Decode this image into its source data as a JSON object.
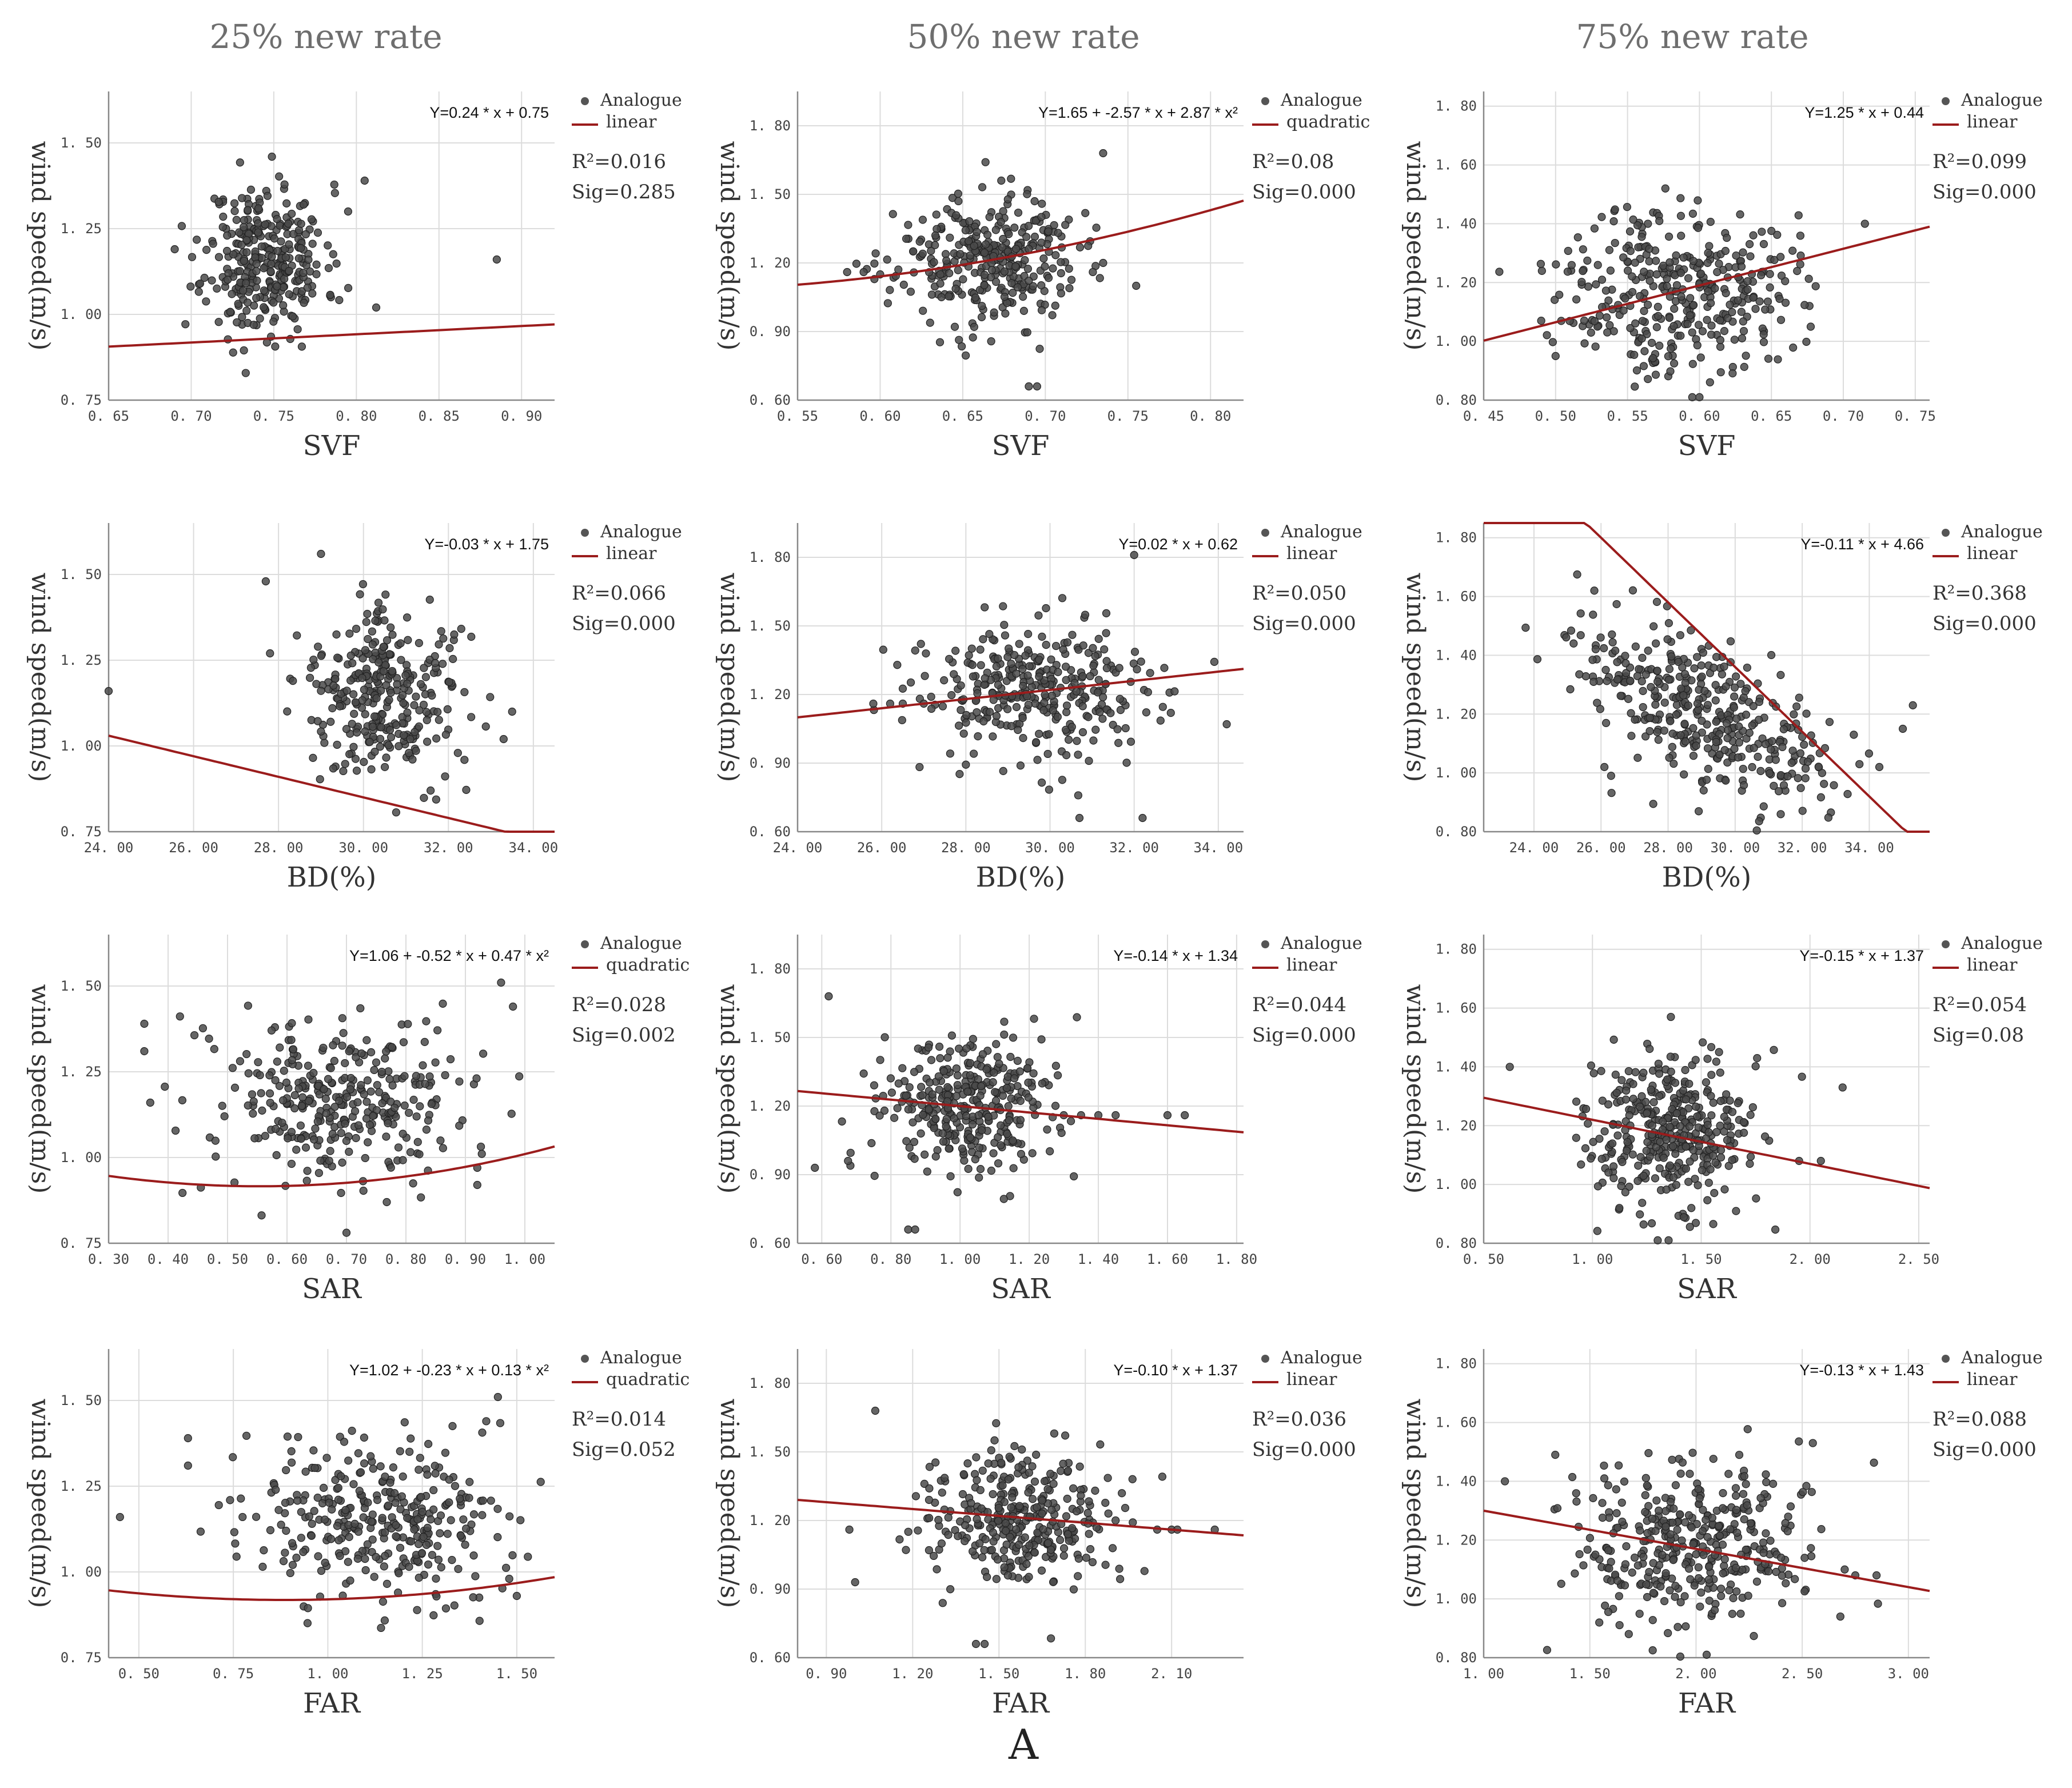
{
  "column_titles": [
    "25% new rate",
    "50% new rate",
    "75% new rate"
  ],
  "figure_label": "A",
  "legend_point_label": "Analogue",
  "colors": {
    "points": "#4a4a4a",
    "fit": "#9b1c1c",
    "grid": "#dcdcdc",
    "axis": "#888888"
  },
  "chart_data": [
    {
      "type": "scatter",
      "row": 0,
      "col": 0,
      "xlabel": "SVF",
      "ylabel": "wind speed(m/s)",
      "xlim": [
        0.65,
        0.92
      ],
      "ylim": [
        0.75,
        1.65
      ],
      "xticks": [
        0.65,
        0.7,
        0.75,
        0.8,
        0.85,
        0.9
      ],
      "yticks": [
        0.75,
        1.0,
        1.25,
        1.5
      ],
      "ytick_decimals": 2,
      "xtick_decimals": 2,
      "fit": {
        "kind": "linear",
        "coef": [
          0.75,
          0.24
        ],
        "label": "linear"
      },
      "equation": "Y=0.24 * x + 0.75",
      "r2": "R²=0.016",
      "sig": "Sig=0.285",
      "cloud": {
        "cx": 0.745,
        "cy": 1.16,
        "sx": 0.018,
        "sy": 0.11,
        "n": 320,
        "seed": 11
      },
      "outliers": [
        [
          0.885,
          1.16
        ],
        [
          0.805,
          1.39
        ],
        [
          0.812,
          1.02
        ],
        [
          0.795,
          1.3
        ],
        [
          0.69,
          1.19
        ]
      ]
    },
    {
      "type": "scatter",
      "row": 0,
      "col": 1,
      "xlabel": "SVF",
      "ylabel": "wind speed(m/s)",
      "xlim": [
        0.55,
        0.82
      ],
      "ylim": [
        0.6,
        1.95
      ],
      "xticks": [
        0.55,
        0.6,
        0.65,
        0.7,
        0.75,
        0.8
      ],
      "yticks": [
        0.6,
        0.9,
        1.2,
        1.5,
        1.8
      ],
      "ytick_decimals": 2,
      "xtick_decimals": 2,
      "fit": {
        "kind": "quadratic",
        "coef": [
          1.65,
          -2.57,
          2.87
        ],
        "label": "quadratic"
      },
      "equation": "Y=1.65 + -2.57 * x + 2.87 * x²",
      "r2": "R²=0.08",
      "sig": "Sig=0.000",
      "cloud": {
        "cx": 0.665,
        "cy": 1.21,
        "sx": 0.027,
        "sy": 0.14,
        "n": 330,
        "seed": 23
      },
      "outliers": [
        [
          0.69,
          0.66
        ],
        [
          0.695,
          0.66
        ],
        [
          0.755,
          1.1
        ],
        [
          0.735,
          1.68
        ],
        [
          0.735,
          1.2
        ],
        [
          0.58,
          1.16
        ],
        [
          0.59,
          1.16
        ],
        [
          0.6,
          1.15
        ]
      ]
    },
    {
      "type": "scatter",
      "row": 0,
      "col": 2,
      "xlabel": "SVF",
      "ylabel": "wind speed(m/s)",
      "xlim": [
        0.45,
        0.76
      ],
      "ylim": [
        0.8,
        1.85
      ],
      "xticks": [
        0.45,
        0.5,
        0.55,
        0.6,
        0.65,
        0.7,
        0.75
      ],
      "yticks": [
        0.8,
        1.0,
        1.2,
        1.4,
        1.6,
        1.8
      ],
      "ytick_decimals": 2,
      "xtick_decimals": 2,
      "fit": {
        "kind": "linear",
        "coef": [
          0.44,
          1.25
        ],
        "label": "linear"
      },
      "equation": "Y=1.25 * x + 0.44",
      "r2": "R²=0.099",
      "sig": "Sig=0.000",
      "cloud": {
        "cx": 0.585,
        "cy": 1.18,
        "sx": 0.04,
        "sy": 0.14,
        "n": 360,
        "seed": 37
      },
      "outliers": [
        [
          0.5,
          0.95
        ],
        [
          0.715,
          1.4
        ],
        [
          0.595,
          0.81
        ],
        [
          0.6,
          0.81
        ],
        [
          0.49,
          1.07
        ]
      ]
    },
    {
      "type": "scatter",
      "row": 1,
      "col": 0,
      "xlabel": "BD(%)",
      "ylabel": "wind speed(m/s)",
      "xlim": [
        24,
        34.5
      ],
      "ylim": [
        0.75,
        1.65
      ],
      "xticks": [
        24,
        26,
        28,
        30,
        32,
        34
      ],
      "yticks": [
        0.75,
        1.0,
        1.25,
        1.5
      ],
      "ytick_decimals": 2,
      "xtick_decimals": 2,
      "fit": {
        "kind": "linear",
        "coef": [
          1.75,
          -0.03
        ],
        "label": "linear"
      },
      "equation": "Y=-0.03 * x + 1.75",
      "r2": "R²=0.066",
      "sig": "Sig=0.000",
      "cloud": {
        "cx": 30.5,
        "cy": 1.15,
        "sx": 0.95,
        "sy": 0.12,
        "n": 310,
        "seed": 41
      },
      "outliers": [
        [
          24.0,
          1.16
        ],
        [
          27.7,
          1.48
        ],
        [
          27.8,
          1.27
        ],
        [
          33.3,
          1.02
        ],
        [
          33.5,
          1.1
        ],
        [
          29.0,
          1.56
        ]
      ]
    },
    {
      "type": "scatter",
      "row": 1,
      "col": 1,
      "xlabel": "BD(%)",
      "ylabel": "wind speed(m/s)",
      "xlim": [
        24,
        34.6
      ],
      "ylim": [
        0.6,
        1.95
      ],
      "xticks": [
        24,
        26,
        28,
        30,
        32,
        34
      ],
      "yticks": [
        0.6,
        0.9,
        1.2,
        1.5,
        1.8
      ],
      "ytick_decimals": 2,
      "xtick_decimals": 2,
      "fit": {
        "kind": "linear",
        "coef": [
          0.62,
          0.02
        ],
        "label": "linear"
      },
      "equation": "Y=0.02 * x + 0.62",
      "r2": "R²=0.050",
      "sig": "Sig=0.000",
      "cloud": {
        "cx": 29.8,
        "cy": 1.21,
        "sx": 1.5,
        "sy": 0.15,
        "n": 330,
        "seed": 53
      },
      "outliers": [
        [
          25.8,
          1.16
        ],
        [
          26.2,
          1.16
        ],
        [
          26.5,
          1.16
        ],
        [
          27.0,
          1.16
        ],
        [
          30.7,
          0.66
        ],
        [
          32.2,
          0.66
        ],
        [
          34.2,
          1.07
        ],
        [
          32.0,
          1.81
        ]
      ]
    },
    {
      "type": "scatter",
      "row": 1,
      "col": 2,
      "xlabel": "BD(%)",
      "ylabel": "wind speed(m/s)",
      "xlim": [
        22.5,
        35.8
      ],
      "ylim": [
        0.8,
        1.85
      ],
      "xticks": [
        24,
        26,
        28,
        30,
        32,
        34
      ],
      "yticks": [
        0.8,
        1.0,
        1.2,
        1.4,
        1.6,
        1.8
      ],
      "ytick_decimals": 2,
      "xtick_decimals": 2,
      "fit": {
        "kind": "linear",
        "coef": [
          4.66,
          -0.11
        ],
        "label": "linear"
      },
      "equation": "Y=-0.11 * x + 4.66",
      "r2": "R²=0.368",
      "sig": "Sig=0.000",
      "cloud": {
        "cx": 29.0,
        "cy": 1.19,
        "sx": 1.8,
        "sy": 0.12,
        "n": 380,
        "seed": 67,
        "slope": -0.055
      },
      "outliers": [
        [
          25.8,
          1.62
        ],
        [
          26.1,
          1.02
        ],
        [
          26.3,
          0.99
        ],
        [
          35.3,
          1.23
        ],
        [
          34.3,
          1.02
        ],
        [
          35.0,
          1.15
        ]
      ]
    },
    {
      "type": "scatter",
      "row": 2,
      "col": 0,
      "xlabel": "SAR",
      "ylabel": "wind speed(m/s)",
      "xlim": [
        0.3,
        1.05
      ],
      "ylim": [
        0.75,
        1.65
      ],
      "xticks": [
        0.3,
        0.4,
        0.5,
        0.6,
        0.7,
        0.8,
        0.9,
        1.0
      ],
      "yticks": [
        0.75,
        1.0,
        1.25,
        1.5
      ],
      "ytick_decimals": 2,
      "xtick_decimals": 2,
      "fit": {
        "kind": "quadratic",
        "coef": [
          1.06,
          -0.52,
          0.47
        ],
        "label": "quadratic"
      },
      "equation": "Y=1.06 + -0.52 * x + 0.47 * x²",
      "r2": "R²=0.028",
      "sig": "Sig=0.002",
      "cloud": {
        "cx": 0.69,
        "cy": 1.16,
        "sx": 0.11,
        "sy": 0.12,
        "n": 330,
        "seed": 71
      },
      "outliers": [
        [
          0.36,
          1.39
        ],
        [
          0.36,
          1.31
        ],
        [
          0.37,
          1.16
        ],
        [
          0.98,
          1.44
        ],
        [
          0.96,
          1.51
        ],
        [
          0.92,
          0.92
        ],
        [
          0.92,
          0.97
        ]
      ]
    },
    {
      "type": "scatter",
      "row": 2,
      "col": 1,
      "xlabel": "SAR",
      "ylabel": "wind speed(m/s)",
      "xlim": [
        0.53,
        1.82
      ],
      "ylim": [
        0.6,
        1.95
      ],
      "xticks": [
        0.6,
        0.8,
        1.0,
        1.2,
        1.4,
        1.6,
        1.8
      ],
      "yticks": [
        0.6,
        0.9,
        1.2,
        1.5,
        1.8
      ],
      "ytick_decimals": 2,
      "xtick_decimals": 2,
      "fit": {
        "kind": "linear",
        "coef": [
          1.34,
          -0.14
        ],
        "label": "linear"
      },
      "equation": "Y=-0.14 * x + 1.34",
      "r2": "R²=0.044",
      "sig": "Sig=0.000",
      "cloud": {
        "cx": 1.02,
        "cy": 1.21,
        "sx": 0.13,
        "sy": 0.15,
        "n": 330,
        "seed": 83
      },
      "outliers": [
        [
          0.58,
          0.93
        ],
        [
          0.62,
          1.68
        ],
        [
          0.85,
          0.66
        ],
        [
          0.87,
          0.66
        ],
        [
          1.35,
          1.16
        ],
        [
          1.4,
          1.16
        ],
        [
          1.45,
          1.16
        ],
        [
          1.6,
          1.16
        ],
        [
          1.65,
          1.16
        ],
        [
          1.3,
          1.16
        ]
      ]
    },
    {
      "type": "scatter",
      "row": 2,
      "col": 2,
      "xlabel": "SAR",
      "ylabel": "wind speed(m/s)",
      "xlim": [
        0.5,
        2.55
      ],
      "ylim": [
        0.8,
        1.85
      ],
      "xticks": [
        0.5,
        1.0,
        1.5,
        2.0,
        2.5
      ],
      "yticks": [
        0.8,
        1.0,
        1.2,
        1.4,
        1.6,
        1.8
      ],
      "ytick_decimals": 2,
      "xtick_decimals": 2,
      "fit": {
        "kind": "linear",
        "coef": [
          1.37,
          -0.15
        ],
        "label": "linear"
      },
      "equation": "Y=-0.15 * x + 1.37",
      "r2": "R²=0.054",
      "sig": "Sig=0.08",
      "cloud": {
        "cx": 1.35,
        "cy": 1.18,
        "sx": 0.2,
        "sy": 0.14,
        "n": 370,
        "seed": 97
      },
      "outliers": [
        [
          0.62,
          1.4
        ],
        [
          2.15,
          1.33
        ],
        [
          1.95,
          1.08
        ],
        [
          2.05,
          1.08
        ],
        [
          1.3,
          0.81
        ],
        [
          1.35,
          0.81
        ]
      ]
    },
    {
      "type": "scatter",
      "row": 3,
      "col": 0,
      "xlabel": "FAR",
      "ylabel": "wind speed(m/s)",
      "xlim": [
        0.42,
        1.6
      ],
      "ylim": [
        0.75,
        1.65
      ],
      "xticks": [
        0.5,
        0.75,
        1.0,
        1.25,
        1.5
      ],
      "yticks": [
        0.75,
        1.0,
        1.25,
        1.5
      ],
      "ytick_decimals": 2,
      "xtick_decimals": 2,
      "fit": {
        "kind": "quadratic",
        "coef": [
          1.02,
          -0.23,
          0.13
        ],
        "label": "quadratic"
      },
      "equation": "Y=1.02 + -0.23 * x + 0.13 * x²",
      "r2": "R²=0.014",
      "sig": "Sig=0.052",
      "cloud": {
        "cx": 1.13,
        "cy": 1.16,
        "sx": 0.17,
        "sy": 0.12,
        "n": 330,
        "seed": 101
      },
      "outliers": [
        [
          0.45,
          1.16
        ],
        [
          0.63,
          1.39
        ],
        [
          0.63,
          1.31
        ],
        [
          1.45,
          1.51
        ],
        [
          1.5,
          0.93
        ],
        [
          1.48,
          0.98
        ]
      ]
    },
    {
      "type": "scatter",
      "row": 3,
      "col": 1,
      "xlabel": "FAR",
      "ylabel": "wind speed(m/s)",
      "xlim": [
        0.8,
        2.35
      ],
      "ylim": [
        0.6,
        1.95
      ],
      "xticks": [
        0.9,
        1.2,
        1.5,
        1.8,
        2.1
      ],
      "yticks": [
        0.6,
        0.9,
        1.2,
        1.5,
        1.8
      ],
      "ytick_decimals": 2,
      "xtick_decimals": 2,
      "fit": {
        "kind": "linear",
        "coef": [
          1.37,
          -0.1
        ],
        "label": "linear"
      },
      "equation": "Y=-0.10 * x + 1.37",
      "r2": "R²=0.036",
      "sig": "Sig=0.000",
      "cloud": {
        "cx": 1.58,
        "cy": 1.21,
        "sx": 0.17,
        "sy": 0.15,
        "n": 330,
        "seed": 113
      },
      "outliers": [
        [
          0.98,
          1.16
        ],
        [
          1.0,
          0.93
        ],
        [
          1.07,
          1.68
        ],
        [
          1.42,
          0.66
        ],
        [
          1.45,
          0.66
        ],
        [
          2.1,
          1.16
        ],
        [
          2.12,
          1.16
        ],
        [
          2.25,
          1.16
        ],
        [
          2.05,
          1.16
        ]
      ]
    },
    {
      "type": "scatter",
      "row": 3,
      "col": 2,
      "xlabel": "FAR",
      "ylabel": "wind speed(m/s)",
      "xlim": [
        1.0,
        3.1
      ],
      "ylim": [
        0.8,
        1.85
      ],
      "xticks": [
        1.0,
        1.5,
        2.0,
        2.5,
        3.0
      ],
      "yticks": [
        0.8,
        1.0,
        1.2,
        1.4,
        1.6,
        1.8
      ],
      "ytick_decimals": 2,
      "xtick_decimals": 2,
      "fit": {
        "kind": "linear",
        "coef": [
          1.43,
          -0.13
        ],
        "label": "linear"
      },
      "equation": "Y=-0.13 * x + 1.43",
      "r2": "R²=0.088",
      "sig": "Sig=0.000",
      "cloud": {
        "cx": 2.0,
        "cy": 1.18,
        "sx": 0.28,
        "sy": 0.14,
        "n": 370,
        "seed": 127
      },
      "outliers": [
        [
          1.1,
          1.4
        ],
        [
          2.75,
          1.08
        ],
        [
          2.7,
          1.1
        ],
        [
          2.05,
          0.81
        ],
        [
          2.55,
          1.53
        ],
        [
          2.85,
          1.08
        ]
      ]
    }
  ]
}
